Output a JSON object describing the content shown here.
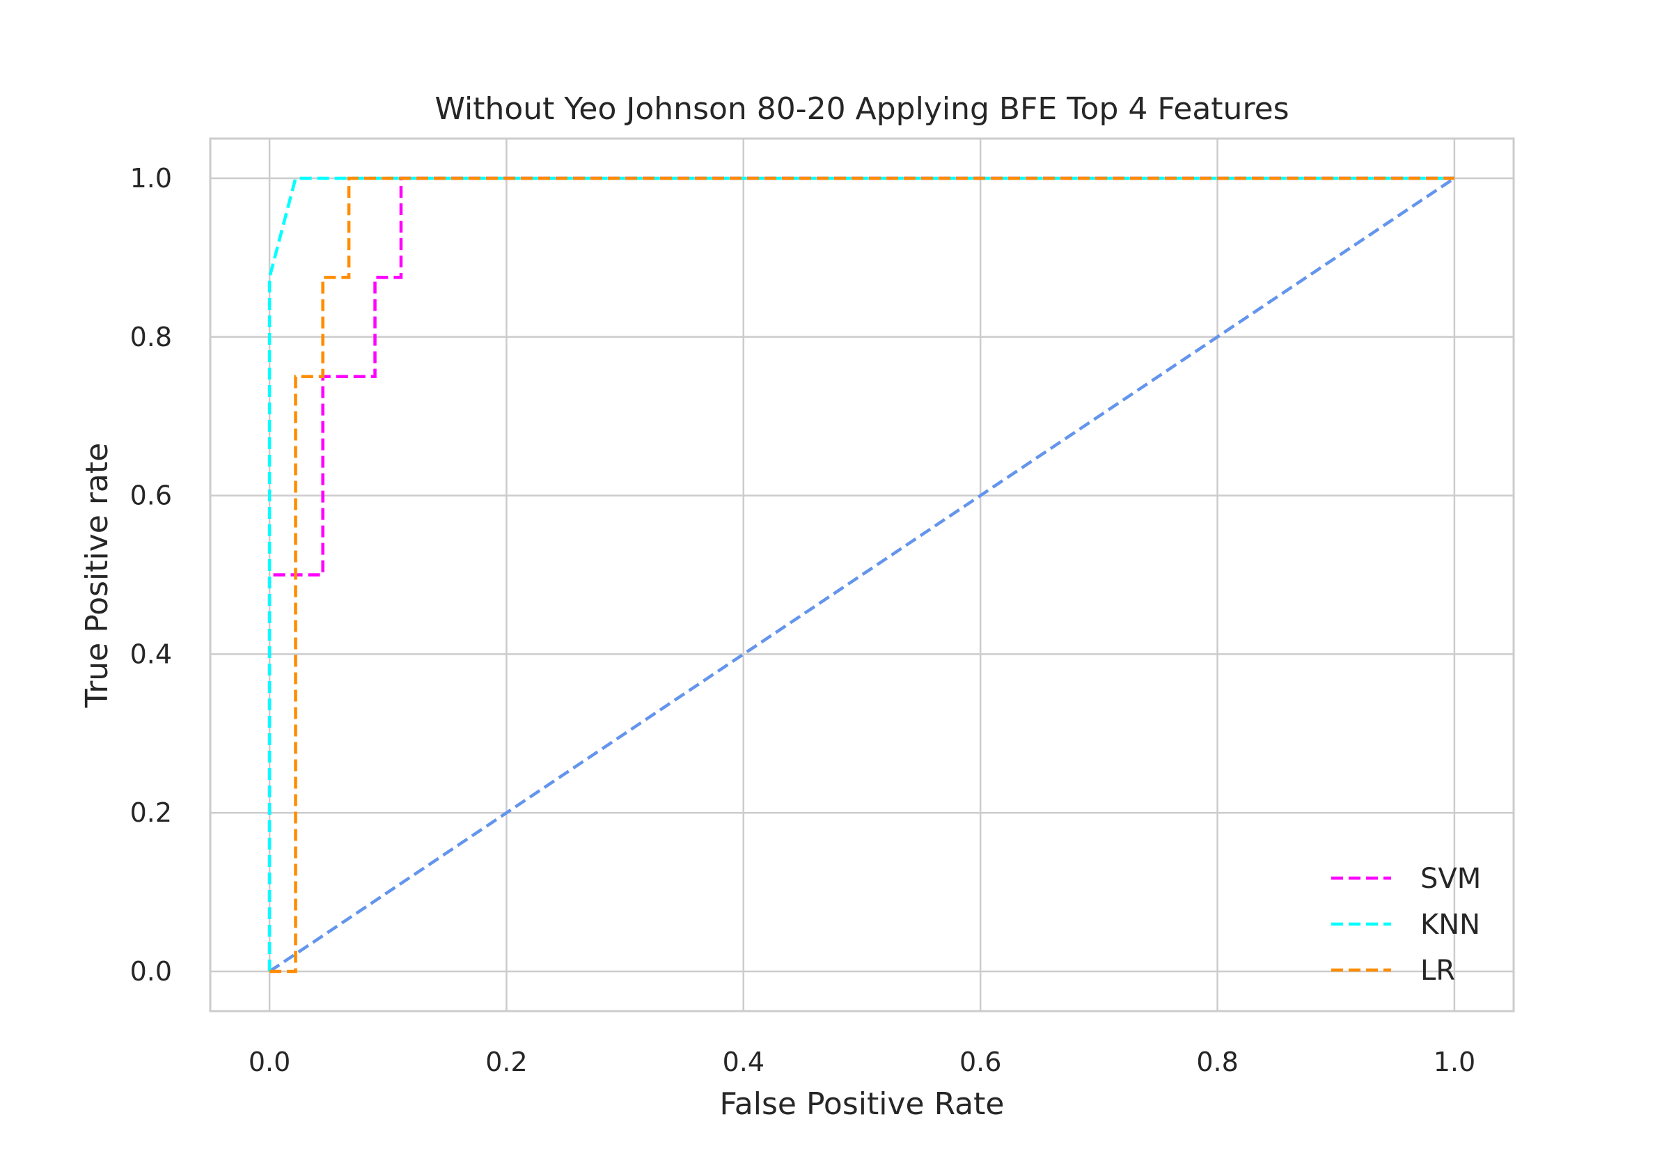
{
  "chart_data": {
    "type": "line",
    "title": "Without Yeo Johnson 80-20 Applying BFE Top 4 Features",
    "xlabel": "False Positive Rate",
    "ylabel": "True Positive rate",
    "xlim": [
      -0.05,
      1.05
    ],
    "ylim": [
      -0.05,
      1.05
    ],
    "xticks": [
      0.0,
      0.2,
      0.4,
      0.6,
      0.8,
      1.0
    ],
    "xtick_labels": [
      "0.0",
      "0.2",
      "0.4",
      "0.6",
      "0.8",
      "1.0"
    ],
    "yticks": [
      0.0,
      0.2,
      0.4,
      0.6,
      0.8,
      1.0
    ],
    "ytick_labels": [
      "0.0",
      "0.2",
      "0.4",
      "0.6",
      "0.8",
      "1.0"
    ],
    "grid": true,
    "legend_position": "lower-right",
    "series": [
      {
        "name": "SVM",
        "color": "#ff00ff",
        "style": "dashed",
        "x": [
          0.0,
          0.0,
          0.0,
          0.045,
          0.045,
          0.089,
          0.089,
          0.111,
          0.111,
          1.0
        ],
        "y": [
          0.0,
          0.125,
          0.5,
          0.5,
          0.75,
          0.75,
          0.875,
          0.875,
          1.0,
          1.0
        ]
      },
      {
        "name": "KNN",
        "color": "#00ffff",
        "style": "dashed",
        "x": [
          0.0,
          0.0,
          0.022,
          1.0
        ],
        "y": [
          0.0,
          0.875,
          1.0,
          1.0
        ]
      },
      {
        "name": "LR",
        "color": "#ff8c00",
        "style": "dashed",
        "x": [
          0.0,
          0.022,
          0.022,
          0.045,
          0.045,
          0.067,
          0.067,
          1.0
        ],
        "y": [
          0.0,
          0.0,
          0.75,
          0.75,
          0.875,
          0.875,
          1.0,
          1.0
        ]
      }
    ],
    "reference_line": {
      "color": "#6495ed",
      "style": "dashed",
      "x": [
        0.0,
        1.0
      ],
      "y": [
        0.0,
        1.0
      ]
    }
  }
}
